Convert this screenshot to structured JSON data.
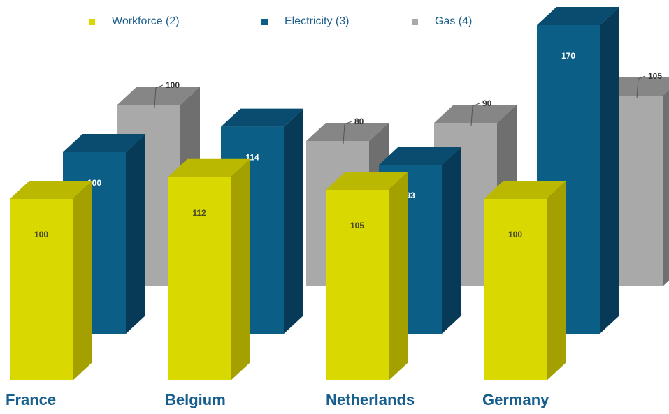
{
  "chart_data": {
    "type": "bar",
    "categories": [
      "France",
      "Belgium",
      "Netherlands",
      "Germany"
    ],
    "series": [
      {
        "name": "Workforce (2)",
        "values": [
          100,
          112,
          105,
          100
        ],
        "color": "#d9d800"
      },
      {
        "name": "Electricity (3)",
        "values": [
          100,
          114,
          93,
          170
        ],
        "color": "#0b5e86"
      },
      {
        "name": "Gas (4)",
        "values": [
          100,
          80,
          90,
          105
        ],
        "color": "#a9a9a9"
      }
    ],
    "legend_position": "top",
    "grid": false
  }
}
